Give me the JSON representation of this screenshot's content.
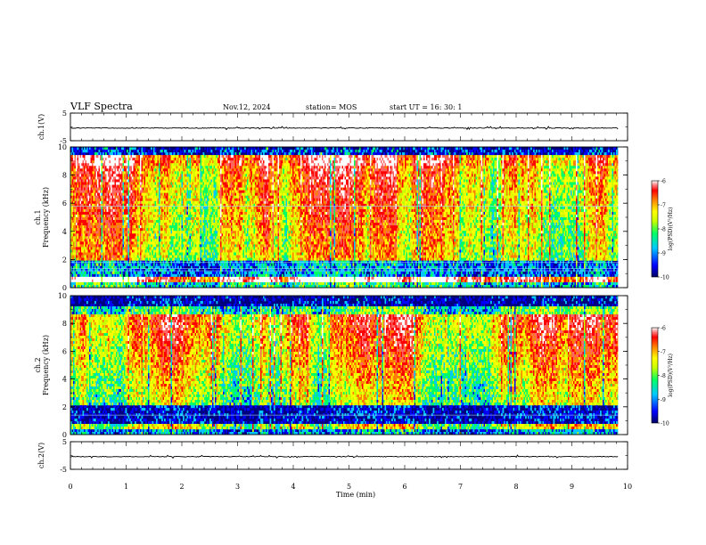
{
  "header": {
    "title": "VLF Spectra",
    "date": "Nov.12, 2024",
    "station": "station= MOS",
    "start": "start  UT =   16: 30: 1"
  },
  "chart_data": [
    {
      "type": "line",
      "name": "waveform-ch1",
      "ylabel": "ch.1(V)",
      "ylim": [
        -5,
        5
      ],
      "ytick_labels": [
        "5",
        "-5"
      ],
      "xlim": [
        0,
        10
      ],
      "level": -0.4
    },
    {
      "type": "heatmap",
      "name": "spectrogram-ch1",
      "ylabel": "ch.1\nFrequency (kHz)",
      "ylim": [
        0,
        10
      ],
      "ytick_labels": [
        "0",
        "2",
        "4",
        "6",
        "8",
        "10"
      ],
      "xlim": [
        0,
        10
      ],
      "data_extent_min": 9.83,
      "colorbar": {
        "label": "log(PSD)(V²/Hz)",
        "range": [
          -10,
          -6
        ],
        "tick_labels": [
          "-6",
          "-7",
          "-8",
          "-9",
          "-10"
        ]
      }
    },
    {
      "type": "heatmap",
      "name": "spectrogram-ch2",
      "ylabel": "ch.2\nFrequency (kHz)",
      "ylim": [
        0,
        10
      ],
      "ytick_labels": [
        "0",
        "2",
        "4",
        "6",
        "8",
        "10"
      ],
      "xlim": [
        0,
        10
      ],
      "data_extent_min": 9.83,
      "colorbar": {
        "label": "log(PSD)(V²/Hz)",
        "range": [
          -10,
          -6
        ],
        "tick_labels": [
          "-6",
          "-7",
          "-8",
          "-9",
          "-10"
        ]
      }
    },
    {
      "type": "line",
      "name": "waveform-ch2",
      "ylabel": "ch.2(V)",
      "ylim": [
        -5,
        5
      ],
      "ytick_labels": [
        "5",
        "-5"
      ],
      "xlim": [
        0,
        10
      ],
      "level": -0.4
    }
  ],
  "x_axis": {
    "label": "Time  (min)",
    "range": [
      0,
      10
    ],
    "tick_labels": [
      "0",
      "1",
      "2",
      "3",
      "4",
      "5",
      "6",
      "7",
      "8",
      "9",
      "10"
    ]
  },
  "colors": {
    "spectrogram_background": "#000080",
    "colormap": [
      "#000064",
      "#0000ff",
      "#00c8ff",
      "#00ff64",
      "#c8ff00",
      "#ffff00",
      "#ff8000",
      "#ff0000",
      "#ff6464",
      "#ffffff"
    ]
  }
}
